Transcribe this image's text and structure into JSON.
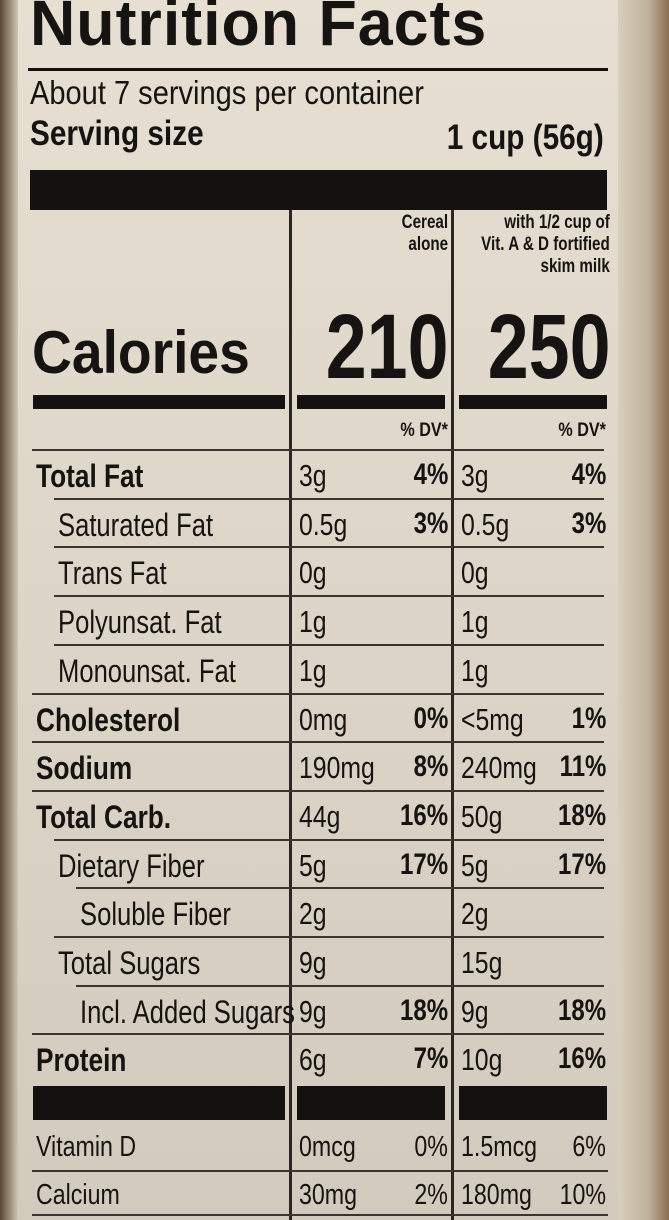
{
  "header": {
    "title": "Nutrition Facts",
    "servings": "About 7 servings per container",
    "serving_size_label": "Serving size",
    "serving_size_value": "1 cup (56g)"
  },
  "columns": {
    "cereal_line1": "Cereal",
    "cereal_line2": "alone",
    "milk_line1": "with 1/2 cup of",
    "milk_line2": "Vit. A & D fortified",
    "milk_line3": "skim milk",
    "dv_label": "% DV*"
  },
  "calories": {
    "label": "Calories",
    "cereal": "210",
    "milk": "250"
  },
  "rows": [
    {
      "label": "Total Fat",
      "bold": true,
      "indent": 0,
      "a1": "3g",
      "p1": "4%",
      "a2": "3g",
      "p2": "4%"
    },
    {
      "label": "Saturated Fat",
      "bold": false,
      "indent": 1,
      "a1": "0.5g",
      "p1": "3%",
      "a2": "0.5g",
      "p2": "3%"
    },
    {
      "label": "Trans Fat",
      "bold": false,
      "indent": 1,
      "a1": "0g",
      "p1": "",
      "a2": "0g",
      "p2": ""
    },
    {
      "label": "Polyunsat. Fat",
      "bold": false,
      "indent": 1,
      "a1": "1g",
      "p1": "",
      "a2": "1g",
      "p2": ""
    },
    {
      "label": "Monounsat. Fat",
      "bold": false,
      "indent": 1,
      "a1": "1g",
      "p1": "",
      "a2": "1g",
      "p2": ""
    },
    {
      "label": "Cholesterol",
      "bold": true,
      "indent": 0,
      "a1": "0mg",
      "p1": "0%",
      "a2": "<5mg",
      "p2": "1%"
    },
    {
      "label": "Sodium",
      "bold": true,
      "indent": 0,
      "a1": "190mg",
      "p1": "8%",
      "a2": "240mg",
      "p2": "11%"
    },
    {
      "label": "Total Carb.",
      "bold": true,
      "indent": 0,
      "a1": "44g",
      "p1": "16%",
      "a2": "50g",
      "p2": "18%"
    },
    {
      "label": "Dietary Fiber",
      "bold": false,
      "indent": 1,
      "a1": "5g",
      "p1": "17%",
      "a2": "5g",
      "p2": "17%"
    },
    {
      "label": "Soluble Fiber",
      "bold": false,
      "indent": 2,
      "a1": "2g",
      "p1": "",
      "a2": "2g",
      "p2": ""
    },
    {
      "label": "Total Sugars",
      "bold": false,
      "indent": 1,
      "a1": "9g",
      "p1": "",
      "a2": "15g",
      "p2": ""
    },
    {
      "label": "Incl. Added Sugars",
      "bold": false,
      "indent": 2,
      "a1": "9g",
      "p1": "18%",
      "a2": "9g",
      "p2": "18%"
    },
    {
      "label": "Protein",
      "bold": true,
      "indent": 0,
      "a1": "6g",
      "p1": "7%",
      "a2": "10g",
      "p2": "16%"
    }
  ],
  "vitamins": [
    {
      "label": "Vitamin D",
      "a1": "0mcg",
      "p1": "0%",
      "a2": "1.5mcg",
      "p2": "6%"
    },
    {
      "label": "Calcium",
      "a1": "30mg",
      "p1": "2%",
      "a2": "180mg",
      "p2": "10%"
    }
  ]
}
